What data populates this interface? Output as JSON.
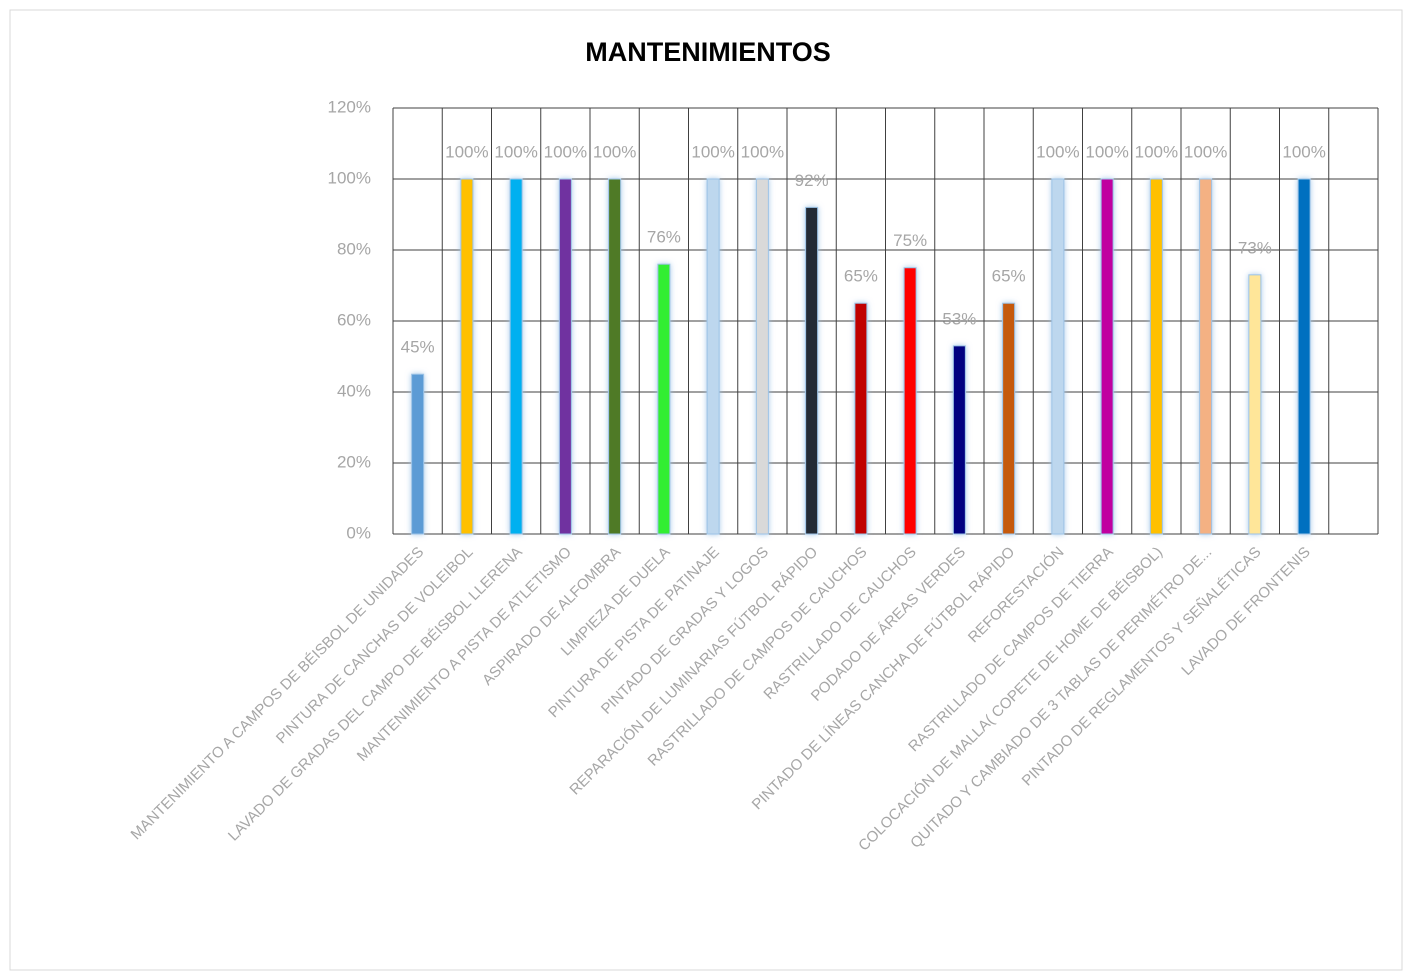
{
  "chart_data": {
    "type": "bar",
    "title": "MANTENIMIENTOS",
    "categories": [
      "MANTENIMIENTO A CAMPOS DE BÉISBOL DE UNIDADES",
      "PINTURA DE CANCHAS DE VOLEIBOL",
      "LAVADO DE GRADAS DEL CAMPO DE BÉISBOL LLERENA",
      "MANTENIMIENTO A PISTA DE ATLETISMO",
      "ASPIRADO DE ALFOMBRA",
      "LIMPIEZA DE DUELA",
      "PINTURA DE PISTA DE PATINAJE",
      "PINTADO DE GRADAS Y LOGOS",
      "REPARACIÓN DE LUMINARIAS FÚTBOL RÁPIDO",
      "RASTRILLADO DE CAMPOS DE CAUCHOS",
      "RASTRILLADO DE CAUCHOS",
      "PODADO DE ÁREAS VERDES",
      "PINTADO DE LÍNEAS CANCHA DE FÚTBOL RÁPIDO",
      "REFORESTACIÓN",
      "RASTRILLADO DE CAMPOS DE TIERRA",
      "COLOCACIÓN DE MALLA( COPETE DE HOME DE BÉISBOL)",
      "QUITADO Y CAMBIADO DE 3 TABLAS DE PERIMÉTRO DE...",
      "PINTADO DE REGLAMENTOS Y SEÑALÉTICAS",
      "LAVADO DE FRONTENIS"
    ],
    "values": [
      45,
      100,
      100,
      100,
      100,
      76,
      100,
      100,
      92,
      65,
      75,
      53,
      65,
      100,
      100,
      100,
      100,
      73,
      100
    ],
    "value_labels": [
      "45%",
      "100%",
      "100%",
      "100%",
      "100%",
      "76%",
      "100%",
      "100%",
      "92%",
      "65%",
      "75%",
      "53%",
      "65%",
      "100%",
      "100%",
      "100%",
      "100%",
      "73%",
      "100%"
    ],
    "colors": [
      "#5b9bd5",
      "#ffc000",
      "#00b0f0",
      "#7030a0",
      "#4f7a28",
      "#33ee33",
      "#bdd7ee",
      "#d9d9d9",
      "#222a35",
      "#c00000",
      "#ff0000",
      "#000080",
      "#c55a11",
      "#bdd7ee",
      "#c000a0",
      "#ffc000",
      "#f4b183",
      "#ffe699",
      "#0070c0"
    ],
    "ylim": [
      0,
      120
    ],
    "yticks": [
      {
        "value": 0,
        "label": "0%"
      },
      {
        "value": 20,
        "label": "20%"
      },
      {
        "value": 40,
        "label": "40%"
      },
      {
        "value": 60,
        "label": "60%"
      },
      {
        "value": 80,
        "label": "80%"
      },
      {
        "value": 100,
        "label": "100%"
      },
      {
        "value": 120,
        "label": "120%"
      }
    ],
    "grid": true
  }
}
